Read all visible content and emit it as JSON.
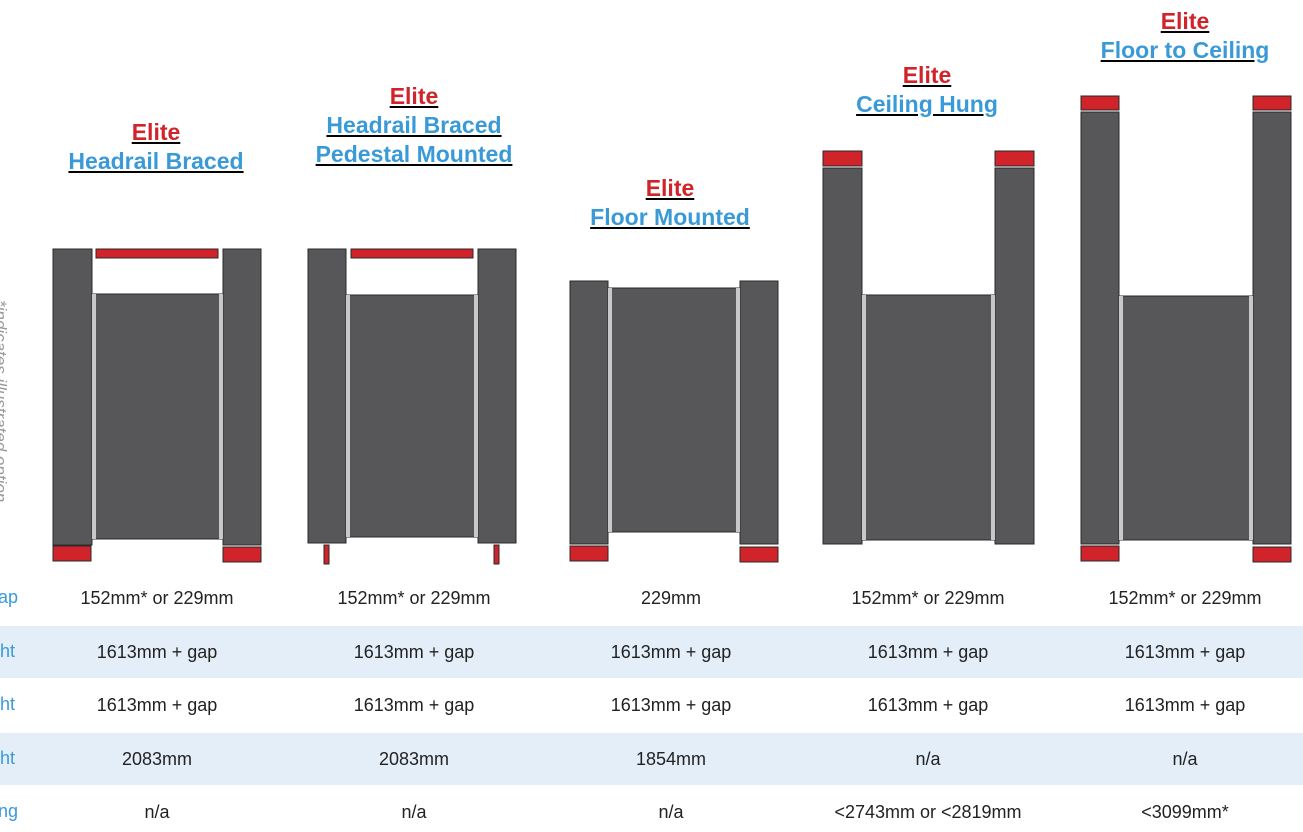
{
  "colors": {
    "panel": "#57575a",
    "panel_stroke": "#2a2a2a",
    "accent_red": "#d0232a",
    "accent_blue": "#3a9ad8",
    "row_band": "#e4eef8"
  },
  "side_note": "*indicates illustrated option",
  "options": [
    {
      "line1": "Elite",
      "line2": "Headrail Braced",
      "line3": ""
    },
    {
      "line1": "Elite",
      "line2": "Headrail Braced",
      "line3": "Pedestal Mounted"
    },
    {
      "line1": "Elite",
      "line2": "Floor Mounted",
      "line3": ""
    },
    {
      "line1": "Elite",
      "line2": "Ceiling Hung",
      "line3": ""
    },
    {
      "line1": "Elite",
      "line2": "Floor to Ceiling",
      "line3": ""
    }
  ],
  "spec_rows": [
    {
      "label": "ap",
      "values": [
        "152mm* or 229mm",
        "152mm* or 229mm",
        "229mm",
        "152mm* or 229mm",
        "152mm* or 229mm"
      ]
    },
    {
      "label": "ht",
      "values": [
        "1613mm + gap",
        "1613mm + gap",
        "1613mm + gap",
        "1613mm + gap",
        "1613mm + gap"
      ]
    },
    {
      "label": "ht",
      "values": [
        "1613mm + gap",
        "1613mm + gap",
        "1613mm + gap",
        "1613mm + gap",
        "1613mm + gap"
      ]
    },
    {
      "label": "ht",
      "values": [
        "2083mm",
        "2083mm",
        "1854mm",
        "n/a",
        "n/a"
      ]
    },
    {
      "label": "ng",
      "values": [
        "n/a",
        "n/a",
        "n/a",
        "<2743mm or <2819mm",
        "<3099mm*"
      ]
    }
  ]
}
